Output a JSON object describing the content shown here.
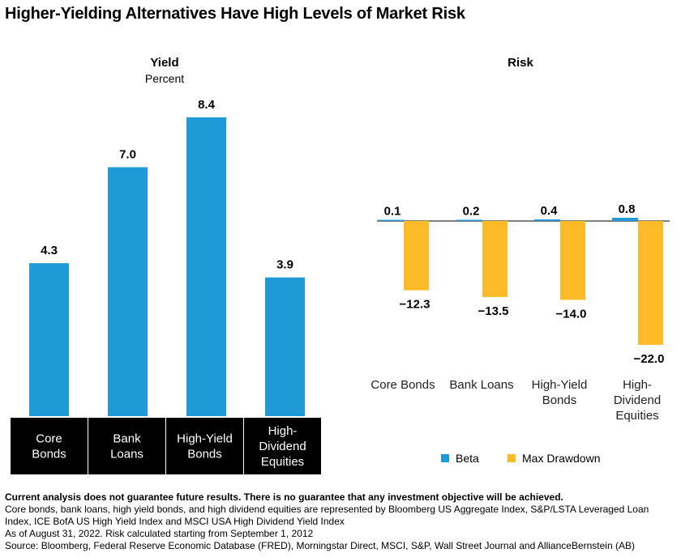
{
  "title": "Higher-Yielding Alternatives Have High Levels of Market Risk",
  "colors": {
    "beta": "#1f9ad6",
    "drawdown": "#fdbb2a",
    "label_box": "#000000"
  },
  "chart_data": [
    {
      "type": "bar",
      "title": "Yield",
      "subtitle": "Percent",
      "categories": [
        "Core\nBonds",
        "Bank\nLoans",
        "High-Yield\nBonds",
        "High-\nDividend\nEquities"
      ],
      "values": [
        4.3,
        7.0,
        8.4,
        3.9
      ],
      "value_labels": [
        "4.3",
        "7.0",
        "8.4",
        "3.9"
      ],
      "ylim": [
        0,
        9
      ],
      "grid": false
    },
    {
      "type": "bar",
      "title": "Risk",
      "categories": [
        "Core Bonds",
        "Bank Loans",
        "High-Yield\nBonds",
        "High-\nDividend\nEquities"
      ],
      "series": [
        {
          "name": "Beta",
          "values": [
            0.1,
            0.2,
            0.4,
            0.8
          ],
          "labels": [
            "0.1",
            "0.2",
            "0.4",
            "0.8"
          ]
        },
        {
          "name": "Max Drawdown",
          "values": [
            -12.3,
            -13.5,
            -14.0,
            -22.0
          ],
          "labels": [
            "−12.3",
            "−13.5",
            "−14.0",
            "−22.0"
          ]
        }
      ],
      "ylim": [
        -22,
        1
      ],
      "legend": "bottom",
      "grid": false
    }
  ],
  "footer": {
    "disclaimer": "Current analysis does not guarantee future results. There is no guarantee that any investment objective will be achieved.",
    "note1": "Core bonds, bank loans, high yield bonds, and high dividend equities are represented by Bloomberg US Aggregate Index, S&P/LSTA Leveraged Loan",
    "note2": "Index, ICE BofA US High Yield Index and MSCI USA High Dividend Yield Index",
    "note3": "As of August 31, 2022. Risk calculated starting from September 1, 2012",
    "source": "Source: Bloomberg, Federal Reserve Economic Database (FRED), Morningstar Direct, MSCI, S&P, Wall Street Journal and AllianceBernstein (AB)"
  }
}
